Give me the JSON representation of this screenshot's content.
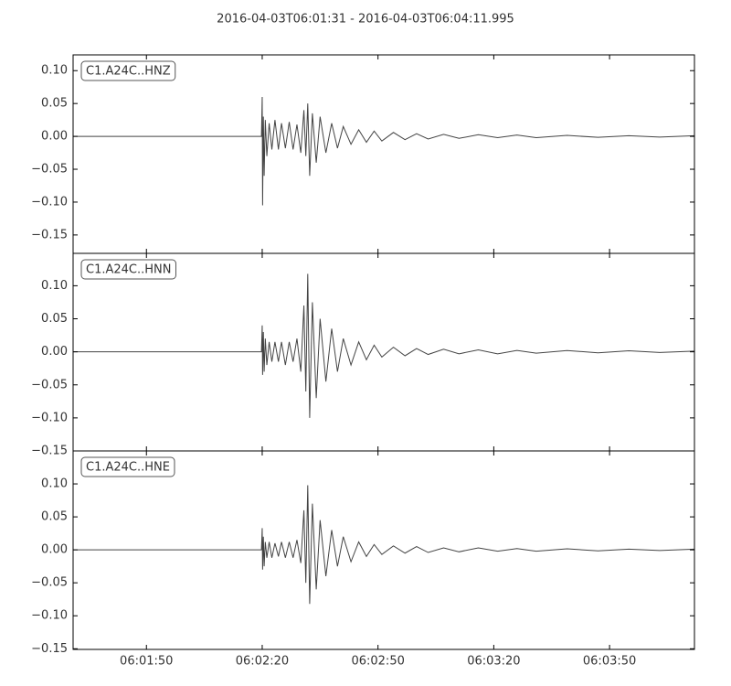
{
  "title": "2016-04-03T06:01:31  -  2016-04-03T06:04:11.995",
  "chart_data": [
    {
      "type": "line",
      "label": "C1.A24C..HNZ",
      "color": "#444444",
      "xlim": [
        0,
        160.995
      ],
      "xticks": [
        19,
        49,
        79,
        109,
        139
      ],
      "ylim": [
        -0.178,
        0.124
      ],
      "yticks": [
        {
          "value": 0.1,
          "label": "0.10"
        },
        {
          "value": 0.05,
          "label": "0.05"
        },
        {
          "value": 0,
          "label": "0.00"
        },
        {
          "value": -0.05,
          "label": "−0.05"
        },
        {
          "value": -0.1,
          "label": "−0.10"
        },
        {
          "value": -0.15,
          "label": "−0.15"
        }
      ],
      "x": [
        0,
        48.8,
        49.0,
        49.1,
        49.3,
        49.5,
        49.8,
        50.2,
        50.8,
        51.5,
        52.3,
        53.2,
        54.0,
        55.0,
        56.0,
        57.0,
        58.0,
        59.0,
        59.8,
        60.3,
        60.8,
        61.3,
        62.0,
        63.0,
        64.0,
        65.5,
        67,
        68.5,
        70,
        72,
        74,
        76,
        78,
        80,
        83,
        86,
        89,
        92,
        96,
        100,
        105,
        110,
        115,
        120,
        128,
        136,
        144,
        152,
        161
      ],
      "values": [
        0,
        0,
        0.06,
        -0.105,
        0.03,
        -0.06,
        0.025,
        -0.03,
        0.02,
        -0.02,
        0.025,
        -0.02,
        0.02,
        -0.018,
        0.022,
        -0.02,
        0.018,
        -0.025,
        0.04,
        -0.03,
        0.05,
        -0.06,
        0.035,
        -0.04,
        0.03,
        -0.025,
        0.02,
        -0.018,
        0.015,
        -0.012,
        0.01,
        -0.009,
        0.008,
        -0.007,
        0.006,
        -0.005,
        0.004,
        -0.004,
        0.003,
        -0.003,
        0.0025,
        -0.002,
        0.002,
        -0.002,
        0.0015,
        -0.0015,
        0.001,
        -0.001,
        0.001
      ]
    },
    {
      "type": "line",
      "label": "C1.A24C..HNN",
      "color": "#444444",
      "xlim": [
        0,
        160.995
      ],
      "xticks": [
        19,
        49,
        79,
        109,
        139
      ],
      "ylim": [
        -0.15,
        0.149
      ],
      "yticks": [
        {
          "value": 0.1,
          "label": "0.10"
        },
        {
          "value": 0.05,
          "label": "0.05"
        },
        {
          "value": 0,
          "label": "0.00"
        },
        {
          "value": -0.05,
          "label": "−0.05"
        },
        {
          "value": -0.1,
          "label": "−0.10"
        },
        {
          "value": -0.15,
          "label": "−0.15"
        }
      ],
      "x": [
        0,
        48.8,
        49.0,
        49.1,
        49.3,
        49.5,
        49.8,
        50.2,
        50.8,
        51.5,
        52.3,
        53.2,
        54.0,
        55.0,
        56.0,
        57.0,
        58.0,
        59.0,
        59.8,
        60.3,
        60.8,
        61.3,
        62.0,
        63.0,
        64.0,
        65.5,
        67,
        68.5,
        70,
        72,
        74,
        76,
        78,
        80,
        83,
        86,
        89,
        92,
        96,
        100,
        105,
        110,
        115,
        120,
        128,
        136,
        144,
        152,
        161
      ],
      "values": [
        0,
        0,
        0.04,
        -0.035,
        0.03,
        -0.03,
        0.02,
        -0.02,
        0.015,
        -0.015,
        0.015,
        -0.015,
        0.015,
        -0.02,
        0.015,
        -0.015,
        0.02,
        -0.03,
        0.07,
        -0.06,
        0.118,
        -0.1,
        0.075,
        -0.07,
        0.05,
        -0.045,
        0.035,
        -0.03,
        0.02,
        -0.02,
        0.015,
        -0.012,
        0.01,
        -0.008,
        0.007,
        -0.006,
        0.005,
        -0.004,
        0.004,
        -0.003,
        0.003,
        -0.003,
        0.002,
        -0.002,
        0.002,
        -0.0015,
        0.0015,
        -0.001,
        0.001
      ]
    },
    {
      "type": "line",
      "label": "C1.A24C..HNE",
      "color": "#444444",
      "xlim": [
        0,
        160.995
      ],
      "xticks": [
        {
          "value": 19,
          "label": "06:01:50"
        },
        {
          "value": 49,
          "label": "06:02:20"
        },
        {
          "value": 79,
          "label": "06:02:50"
        },
        {
          "value": 109,
          "label": "06:03:20"
        },
        {
          "value": 139,
          "label": "06:03:50"
        }
      ],
      "ylim": [
        -0.151,
        0.15
      ],
      "yticks": [
        {
          "value": 0.1,
          "label": "0.10"
        },
        {
          "value": 0.05,
          "label": "0.05"
        },
        {
          "value": 0,
          "label": "0.00"
        },
        {
          "value": -0.05,
          "label": "−0.05"
        },
        {
          "value": -0.1,
          "label": "−0.10"
        },
        {
          "value": -0.15,
          "label": "−0.15"
        }
      ],
      "x": [
        0,
        48.8,
        49.0,
        49.1,
        49.3,
        49.5,
        49.8,
        50.2,
        50.8,
        51.5,
        52.3,
        53.2,
        54.0,
        55.0,
        56.0,
        57.0,
        58.0,
        59.0,
        59.8,
        60.3,
        60.8,
        61.3,
        62.0,
        63.0,
        64.0,
        65.5,
        67,
        68.5,
        70,
        72,
        74,
        76,
        78,
        80,
        83,
        86,
        89,
        92,
        96,
        100,
        105,
        110,
        115,
        120,
        128,
        136,
        144,
        152,
        161
      ],
      "values": [
        0,
        0,
        0.033,
        -0.03,
        0.02,
        -0.025,
        0.012,
        -0.012,
        0.012,
        -0.012,
        0.01,
        -0.01,
        0.012,
        -0.012,
        0.012,
        -0.012,
        0.015,
        -0.02,
        0.06,
        -0.05,
        0.098,
        -0.082,
        0.07,
        -0.06,
        0.045,
        -0.04,
        0.03,
        -0.025,
        0.02,
        -0.018,
        0.012,
        -0.01,
        0.008,
        -0.007,
        0.006,
        -0.005,
        0.005,
        -0.004,
        0.003,
        -0.003,
        0.003,
        -0.002,
        0.002,
        -0.002,
        0.0015,
        -0.0015,
        0.001,
        -0.001,
        0.001
      ]
    }
  ]
}
